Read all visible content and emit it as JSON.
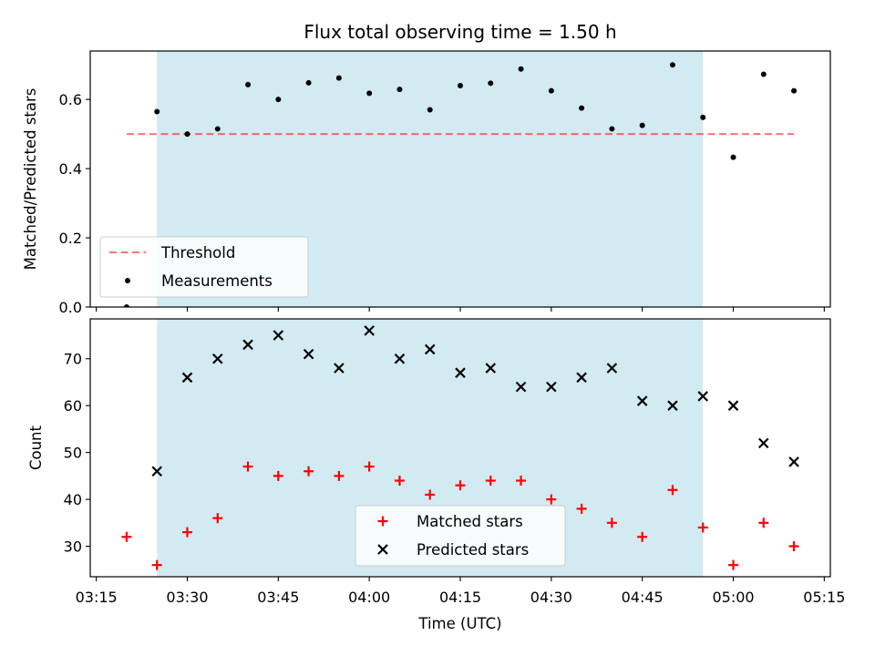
{
  "chart_data": {
    "type": "scatter",
    "title": "Flux total observing time = 1.50 h",
    "xlabel": "Time (UTC)",
    "x_tick_labels": [
      "03:15",
      "03:30",
      "03:45",
      "04:00",
      "04:15",
      "04:30",
      "04:45",
      "05:00",
      "05:15"
    ],
    "x_times": [
      "03:20",
      "03:25",
      "03:30",
      "03:35",
      "03:40",
      "03:45",
      "03:50",
      "03:55",
      "04:00",
      "04:05",
      "04:10",
      "04:15",
      "04:20",
      "04:25",
      "04:30",
      "04:35",
      "04:40",
      "04:45",
      "04:50",
      "04:55",
      "05:00",
      "05:05",
      "05:10"
    ],
    "shaded_span": [
      "03:25",
      "04:55"
    ],
    "shaded_color": "#add8e6",
    "grid": false,
    "panels": [
      {
        "ylabel": "Matched/Predicted stars",
        "ylim": [
          0.0,
          0.74
        ],
        "y_tick_values": [
          0.0,
          0.2,
          0.4,
          0.6
        ],
        "y_tick_labels": [
          "0.0",
          "0.2",
          "0.4",
          "0.6"
        ],
        "threshold": {
          "name": "Threshold",
          "value": 0.5,
          "x_range": [
            "03:20",
            "05:10"
          ],
          "color": "#ff0000"
        },
        "series": [
          {
            "name": "Measurements",
            "marker": "dot",
            "color": "#000000",
            "values": [
              0.0,
              0.565,
              0.5,
              0.515,
              0.643,
              0.6,
              0.648,
              0.662,
              0.618,
              0.629,
              0.57,
              0.64,
              0.647,
              0.688,
              0.625,
              0.575,
              0.515,
              0.525,
              0.7,
              0.548,
              0.433,
              0.673,
              0.625
            ]
          }
        ],
        "legend": {
          "position": "lower-left",
          "entries": [
            "Threshold",
            "Measurements"
          ]
        }
      },
      {
        "ylabel": "Count",
        "ylim": [
          23.5,
          78.5
        ],
        "y_tick_values": [
          30,
          40,
          50,
          60,
          70
        ],
        "y_tick_labels": [
          "30",
          "40",
          "50",
          "60",
          "70"
        ],
        "series": [
          {
            "name": "Matched stars",
            "marker": "plus",
            "color": "#ff0000",
            "values": [
              32,
              26,
              33,
              36,
              47,
              45,
              46,
              45,
              47,
              44,
              41,
              43,
              44,
              44,
              40,
              38,
              35,
              32,
              42,
              34,
              26,
              35,
              30
            ]
          },
          {
            "name": "Predicted stars",
            "marker": "x",
            "color": "#000000",
            "values": [
              null,
              46,
              66,
              70,
              73,
              75,
              71,
              68,
              76,
              70,
              72,
              67,
              68,
              64,
              64,
              66,
              68,
              61,
              60,
              62,
              60,
              52,
              48
            ]
          }
        ],
        "legend": {
          "position": "lower-center",
          "entries": [
            "Matched stars",
            "Predicted stars"
          ]
        }
      }
    ]
  }
}
